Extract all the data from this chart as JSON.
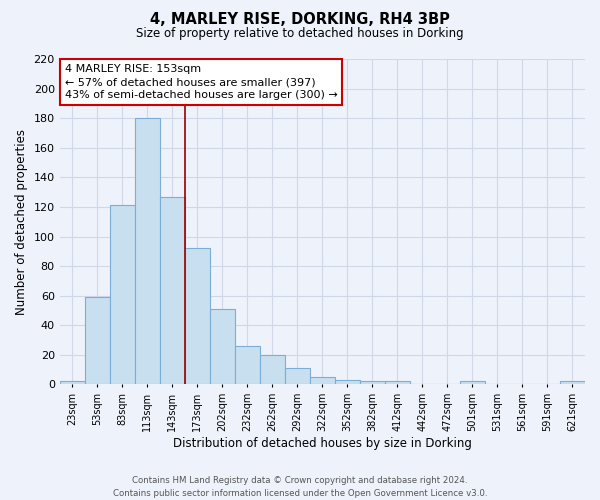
{
  "title": "4, MARLEY RISE, DORKING, RH4 3BP",
  "subtitle": "Size of property relative to detached houses in Dorking",
  "xlabel": "Distribution of detached houses by size in Dorking",
  "ylabel": "Number of detached properties",
  "bar_labels": [
    "23sqm",
    "53sqm",
    "83sqm",
    "113sqm",
    "143sqm",
    "173sqm",
    "202sqm",
    "232sqm",
    "262sqm",
    "292sqm",
    "322sqm",
    "352sqm",
    "382sqm",
    "412sqm",
    "442sqm",
    "472sqm",
    "501sqm",
    "531sqm",
    "561sqm",
    "591sqm",
    "621sqm"
  ],
  "bar_values": [
    2,
    59,
    121,
    180,
    127,
    92,
    51,
    26,
    20,
    11,
    5,
    3,
    2,
    2,
    0,
    0,
    2,
    0,
    0,
    0,
    2
  ],
  "bar_color": "#c8dff0",
  "bar_edge_color": "#7aaed6",
  "annotation_line_x_label": "143sqm",
  "annotation_line_color": "#990000",
  "annotation_box_text": "4 MARLEY RISE: 153sqm\n← 57% of detached houses are smaller (397)\n43% of semi-detached houses are larger (300) →",
  "ylim": [
    0,
    220
  ],
  "yticks": [
    0,
    20,
    40,
    60,
    80,
    100,
    120,
    140,
    160,
    180,
    200,
    220
  ],
  "footnote": "Contains HM Land Registry data © Crown copyright and database right 2024.\nContains public sector information licensed under the Open Government Licence v3.0.",
  "bg_color": "#eef2fa",
  "grid_color": "#d0d8e8",
  "bin_width": 30,
  "bin_starts": [
    8,
    38,
    68,
    98,
    128,
    158,
    188,
    218,
    248,
    278,
    308,
    338,
    368,
    398,
    428,
    458,
    488,
    518,
    548,
    578,
    608
  ],
  "xlim_min": 8,
  "xlim_max": 638
}
